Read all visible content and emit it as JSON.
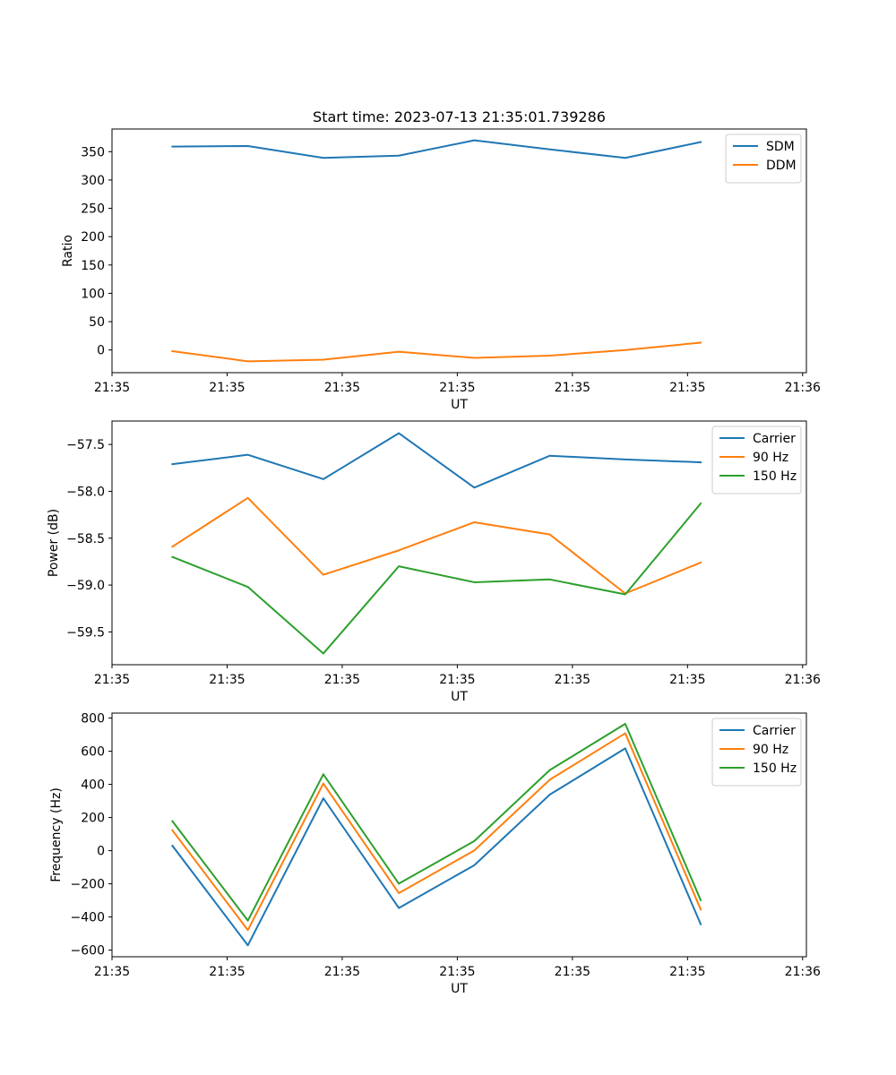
{
  "figure": {
    "title": "Start time: 2023-07-13 21:35:01.739286"
  },
  "chart_data": [
    {
      "type": "line",
      "xlabel": "UT",
      "ylabel": "Ratio",
      "x": [
        1,
        2,
        3,
        4,
        5,
        6,
        7,
        8
      ],
      "xlim": [
        0.2,
        9.4
      ],
      "xticks": [
        0.2,
        1.725,
        3.25,
        4.775,
        6.3,
        7.825,
        9.35
      ],
      "xtick_labels": [
        "21:35",
        "21:35",
        "21:35",
        "21:35",
        "21:35",
        "21:35",
        "21:36"
      ],
      "ylim": [
        -40,
        390
      ],
      "yticks": [
        0,
        50,
        100,
        150,
        200,
        250,
        300,
        350
      ],
      "ytick_labels": [
        "0",
        "50",
        "100",
        "150",
        "200",
        "250",
        "300",
        "350"
      ],
      "legend": "top-right",
      "series": [
        {
          "name": "SDM",
          "color": "#1f77b4",
          "values": [
            359,
            360,
            339,
            343,
            370,
            354,
            339,
            367
          ]
        },
        {
          "name": "DDM",
          "color": "#ff7f0e",
          "values": [
            -2,
            -20,
            -17,
            -3,
            -14,
            -10,
            0,
            13
          ]
        }
      ]
    },
    {
      "type": "line",
      "xlabel": "UT",
      "ylabel": "Power (dB)",
      "x": [
        1,
        2,
        3,
        4,
        5,
        6,
        7,
        8
      ],
      "xlim": [
        0.2,
        9.4
      ],
      "xticks": [
        0.2,
        1.725,
        3.25,
        4.775,
        6.3,
        7.825,
        9.35
      ],
      "xtick_labels": [
        "21:35",
        "21:35",
        "21:35",
        "21:35",
        "21:35",
        "21:35",
        "21:36"
      ],
      "ylim": [
        -59.85,
        -57.25
      ],
      "yticks": [
        -59.5,
        -59.0,
        -58.5,
        -58.0,
        -57.5
      ],
      "ytick_labels": [
        "−59.5",
        "−59.0",
        "−58.5",
        "−58.0",
        "−57.5"
      ],
      "legend": "top-right",
      "series": [
        {
          "name": "Carrier",
          "color": "#1f77b4",
          "values": [
            -57.71,
            -57.61,
            -57.87,
            -57.38,
            -57.96,
            -57.62,
            -57.66,
            -57.69
          ]
        },
        {
          "name": "90 Hz",
          "color": "#ff7f0e",
          "values": [
            -58.59,
            -58.07,
            -58.89,
            -58.63,
            -58.33,
            -58.46,
            -59.09,
            -58.76
          ]
        },
        {
          "name": "150 Hz",
          "color": "#2ca02c",
          "values": [
            -58.7,
            -59.02,
            -59.73,
            -58.8,
            -58.97,
            -58.94,
            -59.1,
            -58.13
          ]
        }
      ]
    },
    {
      "type": "line",
      "xlabel": "UT",
      "ylabel": "Frequency (Hz)",
      "x": [
        1,
        2,
        3,
        4,
        5,
        6,
        7,
        8
      ],
      "xlim": [
        0.2,
        9.4
      ],
      "xticks": [
        0.2,
        1.725,
        3.25,
        4.775,
        6.3,
        7.825,
        9.35
      ],
      "xtick_labels": [
        "21:35",
        "21:35",
        "21:35",
        "21:35",
        "21:35",
        "21:35",
        "21:36"
      ],
      "ylim": [
        -640,
        830
      ],
      "yticks": [
        -600,
        -400,
        -200,
        0,
        200,
        400,
        600,
        800
      ],
      "ytick_labels": [
        "−600",
        "−400",
        "−200",
        "0",
        "200",
        "400",
        "600",
        "800"
      ],
      "legend": "top-right",
      "series": [
        {
          "name": "Carrier",
          "color": "#1f77b4",
          "values": [
            30,
            -571,
            316,
            -346,
            -88,
            338,
            617,
            -444
          ]
        },
        {
          "name": "90 Hz",
          "color": "#ff7f0e",
          "values": [
            123,
            -479,
            405,
            -256,
            1,
            428,
            708,
            -355
          ]
        },
        {
          "name": "150 Hz",
          "color": "#2ca02c",
          "values": [
            178,
            -422,
            461,
            -199,
            58,
            486,
            765,
            -299
          ]
        }
      ]
    }
  ]
}
